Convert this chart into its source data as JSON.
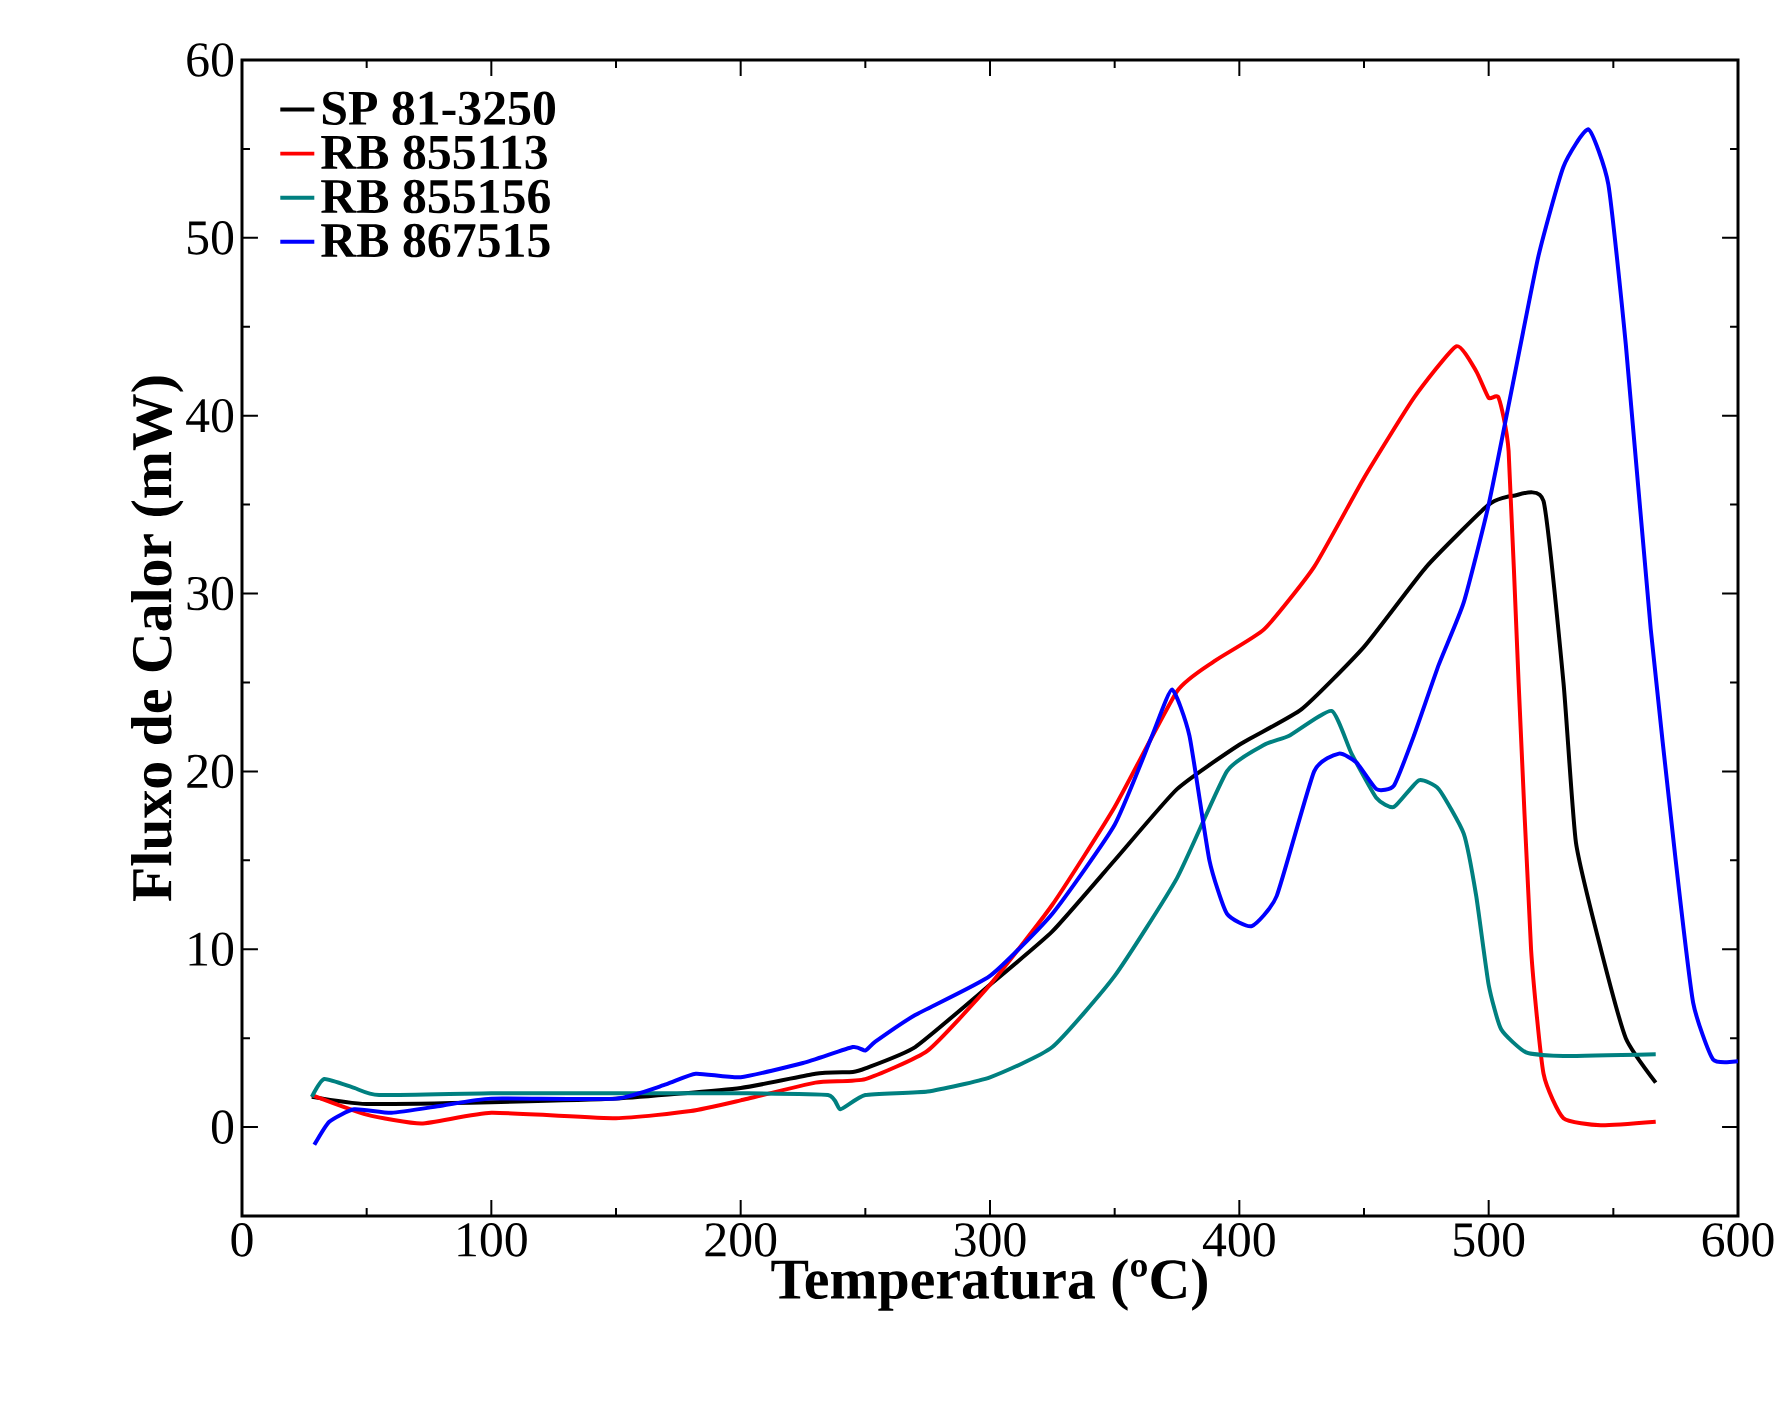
{
  "chart_data": {
    "type": "line",
    "xlabel": "Temperatura (ºC)",
    "ylabel": "Fluxo de Calor (mW)",
    "xlim": [
      0,
      600
    ],
    "ylim": [
      -5,
      60
    ],
    "xticks": [
      0,
      100,
      200,
      300,
      400,
      500,
      600
    ],
    "yticks": [
      0,
      10,
      20,
      30,
      40,
      50,
      60
    ],
    "grid": false,
    "legend": "top left",
    "marker": "none",
    "line_style": "solid",
    "series": [
      {
        "name": "SP 81-3250",
        "color": "#000000",
        "x": [
          28,
          50,
          100,
          150,
          200,
          230,
          245,
          250,
          270,
          300,
          325,
          350,
          375,
          400,
          425,
          450,
          475,
          500,
          510,
          522,
          530,
          535,
          545,
          555,
          567
        ],
        "values": [
          1.7,
          1.3,
          1.4,
          1.6,
          2.2,
          3.0,
          3.1,
          3.3,
          4.5,
          8,
          11,
          15,
          19,
          21.5,
          23.5,
          27,
          31.5,
          35,
          35.5,
          35.2,
          25,
          16,
          10,
          5,
          2.5
        ]
      },
      {
        "name": "RB 855113",
        "color": "#ff0000",
        "x": [
          28,
          50,
          72,
          100,
          150,
          180,
          200,
          230,
          250,
          275,
          300,
          325,
          350,
          375,
          390,
          410,
          430,
          450,
          470,
          487,
          495,
          500,
          504,
          508,
          512,
          517,
          522,
          530,
          545,
          567
        ],
        "values": [
          1.8,
          0.7,
          0.2,
          0.8,
          0.5,
          0.9,
          1.5,
          2.5,
          2.7,
          4.3,
          8,
          12.5,
          18,
          24.5,
          26.2,
          28,
          31.5,
          36.5,
          41,
          43.9,
          42.5,
          41,
          41,
          38,
          25,
          10,
          3,
          0.5,
          0.1,
          0.3
        ]
      },
      {
        "name": "RB 855156",
        "color": "#008080",
        "x": [
          28,
          33,
          45,
          55,
          100,
          150,
          200,
          235,
          240,
          250,
          275,
          300,
          325,
          350,
          375,
          395,
          410,
          420,
          437,
          445,
          455,
          462,
          472,
          480,
          490,
          495,
          500,
          505,
          515,
          530,
          567
        ],
        "values": [
          1.7,
          2.7,
          2.2,
          1.8,
          1.9,
          1.9,
          1.9,
          1.8,
          1.0,
          1.8,
          2.0,
          2.8,
          4.5,
          8.5,
          14,
          20,
          21.5,
          22,
          23.4,
          21,
          18.5,
          18,
          19.5,
          19,
          16.5,
          13,
          8,
          5.5,
          4.2,
          4.0,
          4.1
        ]
      },
      {
        "name": "RB 867515",
        "color": "#0000ff",
        "x": [
          29,
          35,
          45,
          60,
          80,
          100,
          150,
          170,
          182,
          200,
          225,
          245,
          250,
          254,
          270,
          300,
          325,
          350,
          365,
          373,
          380,
          388,
          395,
          405,
          415,
          430,
          440,
          447,
          455,
          462,
          470,
          480,
          490,
          500,
          510,
          520,
          530,
          540,
          548,
          555,
          565,
          575,
          582,
          590,
          600
        ],
        "values": [
          -1.0,
          0.3,
          1.0,
          0.8,
          1.2,
          1.6,
          1.6,
          2.4,
          3.0,
          2.8,
          3.6,
          4.5,
          4.3,
          4.8,
          6.3,
          8.5,
          12,
          17,
          22,
          24.6,
          22,
          15,
          12,
          11.3,
          13,
          20,
          21,
          20.5,
          19.0,
          19.2,
          22,
          26,
          29.5,
          35,
          42,
          49,
          54,
          56.1,
          53,
          44,
          28,
          15,
          7,
          3.8,
          3.7
        ]
      }
    ]
  }
}
